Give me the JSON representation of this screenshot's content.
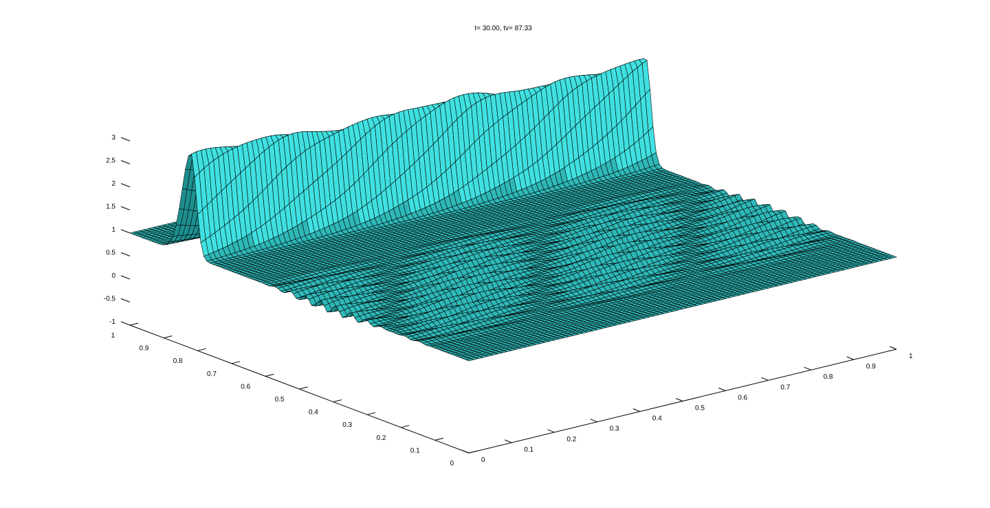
{
  "chart_data": {
    "type": "surface",
    "title": "t= 30.00, tv= 87.33",
    "xlabel": "",
    "ylabel": "",
    "zlabel": "",
    "xlim": [
      0,
      1
    ],
    "ylim": [
      0,
      1
    ],
    "zlim": [
      -1,
      3
    ],
    "x_ticks": [
      "0",
      "0.1",
      "0.2",
      "0.3",
      "0.4",
      "0.5",
      "0.6",
      "0.7",
      "0.8",
      "0.9",
      "1"
    ],
    "y_ticks": [
      "0",
      "0.1",
      "0.2",
      "0.3",
      "0.4",
      "0.5",
      "0.6",
      "0.7",
      "0.8",
      "0.9",
      "1"
    ],
    "z_ticks": [
      "-1",
      "-0.5",
      "0",
      "0.5",
      "1",
      "1.5",
      "2",
      "2.5",
      "3"
    ],
    "grid": false,
    "surface_color": "#2fb8b8",
    "highlight_color": "#40e0e0",
    "edge_color": "#000000",
    "baseline": 1.0,
    "ridge": {
      "peak": 2.2,
      "y_center_start": 0.82,
      "y_center_end": 0.74,
      "width": 0.035
    },
    "ripples": {
      "amplitude": 0.12,
      "y_from": 0.1,
      "y_to": 0.62
    }
  }
}
